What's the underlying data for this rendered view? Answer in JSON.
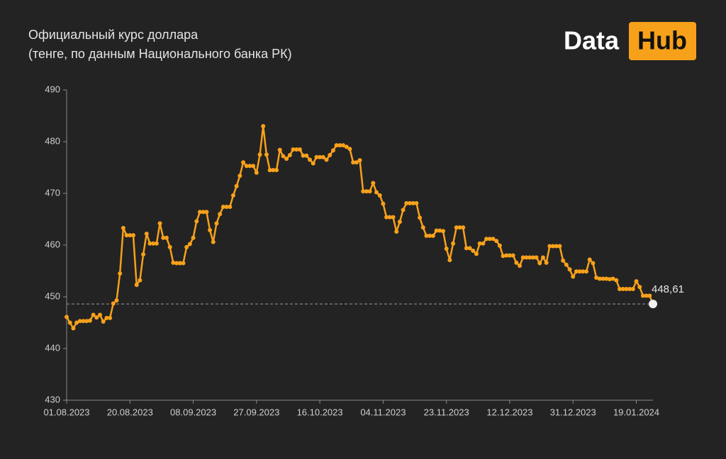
{
  "logo": {
    "left": "Data",
    "right": "Hub"
  },
  "chart_data": {
    "type": "line",
    "title": "Официальный курс доллара",
    "subtitle": "(тенге, по данным Национального банка РК)",
    "x": [
      "01.08.2023",
      "02.08.2023",
      "03.08.2023",
      "04.08.2023",
      "05.08.2023",
      "06.08.2023",
      "07.08.2023",
      "08.08.2023",
      "09.08.2023",
      "10.08.2023",
      "11.08.2023",
      "12.08.2023",
      "13.08.2023",
      "14.08.2023",
      "15.08.2023",
      "16.08.2023",
      "17.08.2023",
      "18.08.2023",
      "19.08.2023",
      "20.08.2023",
      "21.08.2023",
      "22.08.2023",
      "23.08.2023",
      "24.08.2023",
      "25.08.2023",
      "26.08.2023",
      "27.08.2023",
      "28.08.2023",
      "29.08.2023",
      "30.08.2023",
      "31.08.2023",
      "01.09.2023",
      "02.09.2023",
      "03.09.2023",
      "04.09.2023",
      "05.09.2023",
      "06.09.2023",
      "07.09.2023",
      "08.09.2023",
      "09.09.2023",
      "10.09.2023",
      "11.09.2023",
      "12.09.2023",
      "13.09.2023",
      "14.09.2023",
      "15.09.2023",
      "16.09.2023",
      "17.09.2023",
      "18.09.2023",
      "19.09.2023",
      "20.09.2023",
      "21.09.2023",
      "22.09.2023",
      "23.09.2023",
      "24.09.2023",
      "25.09.2023",
      "26.09.2023",
      "27.09.2023",
      "28.09.2023",
      "29.09.2023",
      "30.09.2023",
      "01.10.2023",
      "02.10.2023",
      "03.10.2023",
      "04.10.2023",
      "05.10.2023",
      "06.10.2023",
      "07.10.2023",
      "08.10.2023",
      "09.10.2023",
      "10.10.2023",
      "11.10.2023",
      "12.10.2023",
      "13.10.2023",
      "14.10.2023",
      "15.10.2023",
      "16.10.2023",
      "17.10.2023",
      "18.10.2023",
      "19.10.2023",
      "20.10.2023",
      "21.10.2023",
      "22.10.2023",
      "23.10.2023",
      "24.10.2023",
      "25.10.2023",
      "26.10.2023",
      "27.10.2023",
      "28.10.2023",
      "29.10.2023",
      "30.10.2023",
      "31.10.2023",
      "01.11.2023",
      "02.11.2023",
      "03.11.2023",
      "04.11.2023",
      "05.11.2023",
      "06.11.2023",
      "07.11.2023",
      "08.11.2023",
      "09.11.2023",
      "10.11.2023",
      "11.11.2023",
      "12.11.2023",
      "13.11.2023",
      "14.11.2023",
      "15.11.2023",
      "16.11.2023",
      "17.11.2023",
      "18.11.2023",
      "19.11.2023",
      "20.11.2023",
      "21.11.2023",
      "22.11.2023",
      "23.11.2023",
      "24.11.2023",
      "25.11.2023",
      "26.11.2023",
      "27.11.2023",
      "28.11.2023",
      "29.11.2023",
      "30.11.2023",
      "01.12.2023",
      "02.12.2023",
      "03.12.2023",
      "04.12.2023",
      "05.12.2023",
      "06.12.2023",
      "07.12.2023",
      "08.12.2023",
      "09.12.2023",
      "10.12.2023",
      "11.12.2023",
      "12.12.2023",
      "13.12.2023",
      "14.12.2023",
      "15.12.2023",
      "16.12.2023",
      "17.12.2023",
      "18.12.2023",
      "19.12.2023",
      "20.12.2023",
      "21.12.2023",
      "22.12.2023",
      "23.12.2023",
      "24.12.2023",
      "25.12.2023",
      "26.12.2023",
      "27.12.2023",
      "28.12.2023",
      "29.12.2023",
      "30.12.2023",
      "31.12.2023",
      "01.01.2024",
      "02.01.2024",
      "03.01.2024",
      "04.01.2024",
      "05.01.2024",
      "06.01.2024",
      "07.01.2024",
      "08.01.2024",
      "09.01.2024",
      "10.01.2024",
      "11.01.2024",
      "12.01.2024",
      "13.01.2024",
      "14.01.2024",
      "15.01.2024",
      "16.01.2024",
      "17.01.2024",
      "18.01.2024",
      "19.01.2024",
      "20.01.2024",
      "21.01.2024",
      "22.01.2024",
      "23.01.2024",
      "24.01.2024"
    ],
    "series": [
      {
        "color": "#f7a11a",
        "values": [
          446.1,
          445.0,
          443.9,
          445.0,
          445.3,
          445.3,
          445.3,
          445.4,
          446.5,
          446.0,
          446.5,
          445.2,
          445.9,
          445.9,
          448.7,
          449.3,
          454.5,
          463.3,
          461.9,
          461.9,
          461.9,
          452.3,
          453.2,
          458.2,
          462.2,
          460.3,
          460.3,
          460.3,
          464.2,
          461.4,
          461.4,
          459.6,
          456.6,
          456.5,
          456.5,
          456.5,
          459.6,
          460.2,
          461.4,
          464.6,
          466.4,
          466.4,
          466.4,
          462.9,
          460.6,
          464.2,
          466.0,
          467.4,
          467.4,
          467.4,
          469.6,
          471.4,
          473.4,
          476.0,
          475.3,
          475.3,
          475.3,
          474.0,
          477.5,
          483.0,
          477.5,
          474.5,
          474.5,
          474.5,
          478.4,
          477.2,
          476.7,
          477.4,
          478.5,
          478.5,
          478.5,
          477.3,
          477.3,
          476.5,
          475.8,
          477.0,
          477.0,
          477.0,
          476.5,
          477.4,
          478.3,
          479.3,
          479.3,
          479.3,
          479.0,
          478.6,
          476.0,
          476.0,
          476.4,
          470.4,
          470.4,
          470.4,
          472.0,
          470.2,
          469.6,
          468.0,
          465.4,
          465.4,
          465.4,
          462.6,
          464.5,
          466.8,
          468.1,
          468.1,
          468.1,
          468.1,
          465.3,
          463.4,
          461.8,
          461.8,
          461.8,
          462.8,
          462.8,
          462.7,
          459.3,
          457.1,
          460.3,
          463.4,
          463.4,
          463.4,
          459.4,
          459.4,
          458.9,
          458.3,
          460.3,
          460.3,
          461.2,
          461.2,
          461.2,
          460.8,
          459.9,
          457.9,
          458.0,
          458.0,
          458.0,
          456.6,
          456.0,
          457.6,
          457.6,
          457.6,
          457.6,
          457.6,
          456.5,
          457.6,
          456.6,
          459.8,
          459.8,
          459.8,
          459.8,
          457.0,
          456.2,
          455.3,
          453.9,
          454.9,
          454.9,
          454.9,
          454.9,
          457.2,
          456.5,
          453.7,
          453.5,
          453.5,
          453.5,
          453.4,
          453.5,
          453.2,
          451.5,
          451.5,
          451.5,
          451.5,
          451.5,
          453.0,
          451.9,
          450.2,
          450.2,
          450.2,
          448.61
        ],
        "value_labels": [
          null,
          null,
          null,
          null,
          null,
          null,
          null,
          null,
          null,
          null,
          null,
          null,
          null,
          null,
          null,
          null,
          null,
          null,
          null,
          null,
          null,
          null,
          null,
          null,
          null,
          null,
          null,
          null,
          null,
          null,
          null,
          null,
          null,
          null,
          null,
          null,
          null,
          null,
          null,
          null,
          null,
          null,
          null,
          null,
          null,
          null,
          null,
          null,
          null,
          null,
          null,
          null,
          null,
          null,
          null,
          null,
          null,
          null,
          null,
          null,
          null,
          null,
          null,
          null,
          null,
          null,
          null,
          null,
          null,
          null,
          null,
          null,
          null,
          null,
          null,
          null,
          null,
          null,
          null,
          null,
          null,
          null,
          null,
          null,
          null,
          null,
          null,
          null,
          null,
          null,
          null,
          null,
          null,
          null,
          null,
          null,
          null,
          null,
          null,
          null,
          null,
          null,
          null,
          null,
          null,
          null,
          null,
          null,
          null,
          null,
          null,
          null,
          null,
          null,
          null,
          null,
          null,
          null,
          null,
          null,
          null,
          null,
          null,
          null,
          null,
          null,
          null,
          null,
          null,
          null,
          null,
          null,
          null,
          null,
          null,
          null,
          null,
          null,
          null,
          null,
          null,
          null,
          null,
          null,
          null,
          null,
          null,
          null,
          null,
          null,
          null,
          null,
          null,
          null,
          null,
          null,
          null,
          null,
          null,
          null,
          null,
          null,
          null,
          null,
          null,
          null,
          null,
          null,
          null,
          null,
          null,
          null,
          null,
          null,
          null,
          null,
          "448,61"
        ]
      }
    ],
    "xlim": [
      "01.08.2023",
      "24.01.2024"
    ],
    "xticks": [
      "01.08.2023",
      "20.08.2023",
      "08.09.2023",
      "27.09.2023",
      "16.10.2023",
      "04.11.2023",
      "23.11.2023",
      "12.12.2023",
      "31.12.2023",
      "19.01.2024"
    ],
    "ylim": [
      430,
      490
    ],
    "yticks": [
      430,
      440,
      450,
      460,
      470,
      480,
      490
    ],
    "grid": false,
    "reference_line": "last"
  }
}
